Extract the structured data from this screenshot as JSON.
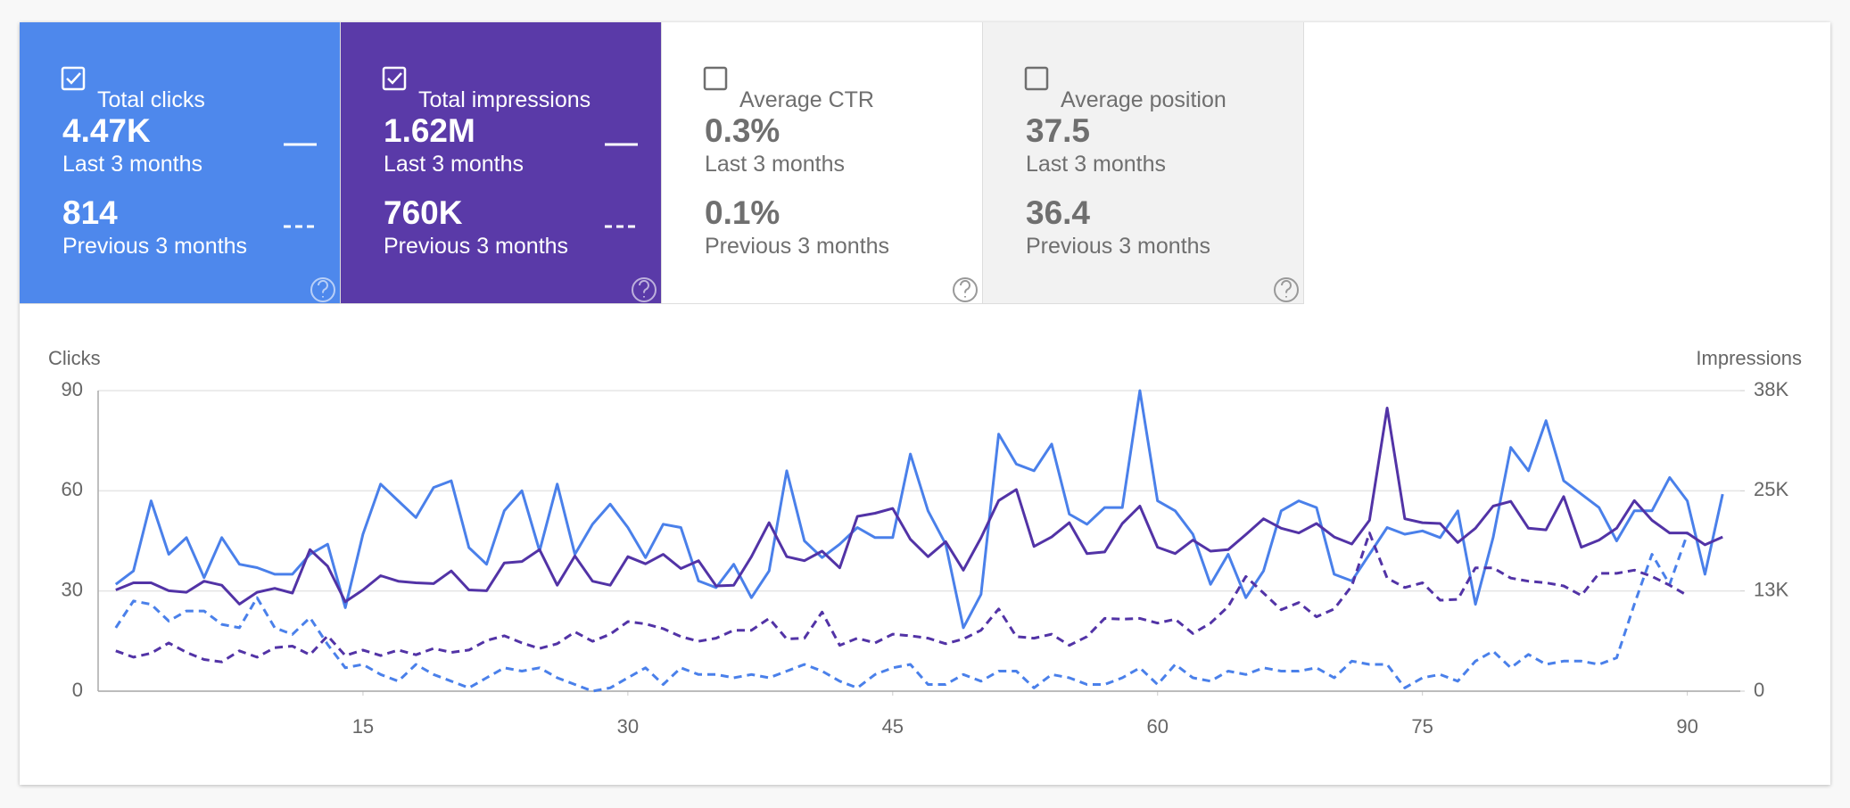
{
  "cards": [
    {
      "label": "Total clicks",
      "checked": true,
      "color": "#4e88ec",
      "text_color": "#ffffff",
      "value": "4.47K",
      "period": "Last 3 months",
      "previous_value": "814",
      "previous_period": "Previous 3 months"
    },
    {
      "label": "Total impressions",
      "checked": true,
      "color": "#5a3aa8",
      "text_color": "#ffffff",
      "value": "1.62M",
      "period": "Last 3 months",
      "previous_value": "760K",
      "previous_period": "Previous 3 months"
    },
    {
      "label": "Average CTR",
      "checked": false,
      "color": "#ffffff",
      "text_color": "#6f6f6f",
      "value": "0.3%",
      "period": "Last 3 months",
      "previous_value": "0.1%",
      "previous_period": "Previous 3 months"
    },
    {
      "label": "Average position",
      "checked": false,
      "color": "#f2f2f2",
      "text_color": "#6f6f6f",
      "value": "37.5",
      "period": "Last 3 months",
      "previous_value": "36.4",
      "previous_period": "Previous 3 months"
    }
  ],
  "chart_data": {
    "type": "line",
    "y_label": "Clicks",
    "y2_label": "Impressions",
    "grid": true,
    "x": [
      1,
      2,
      3,
      4,
      5,
      6,
      7,
      8,
      9,
      10,
      11,
      12,
      13,
      14,
      15,
      16,
      17,
      18,
      19,
      20,
      21,
      22,
      23,
      24,
      25,
      26,
      27,
      28,
      29,
      30,
      31,
      32,
      33,
      34,
      35,
      36,
      37,
      38,
      39,
      40,
      41,
      42,
      43,
      44,
      45,
      46,
      47,
      48,
      49,
      50,
      51,
      52,
      53,
      54,
      55,
      56,
      57,
      58,
      59,
      60,
      61,
      62,
      63,
      64,
      65,
      66,
      67,
      68,
      69,
      70,
      71,
      72,
      73,
      74,
      75,
      76,
      77,
      78,
      79,
      80,
      81,
      82,
      83,
      84,
      85,
      86,
      87,
      88,
      89,
      90,
      91,
      92
    ],
    "xlim": [
      0,
      93
    ],
    "xticks": [
      15,
      30,
      45,
      60,
      75,
      90
    ],
    "ylim": [
      0,
      90
    ],
    "yticks": [
      0,
      30,
      60,
      90
    ],
    "y2lim": [
      0,
      38000
    ],
    "y2ticks": [
      0,
      {
        "value": 12667,
        "label": "13K"
      },
      {
        "value": 25333,
        "label": "25K"
      },
      {
        "value": 38000,
        "label": "38K"
      }
    ],
    "series": [
      {
        "color": "#4a80ea",
        "line_style": "solid",
        "axis": "y",
        "values": [
          32,
          36,
          57,
          41,
          46,
          34,
          46,
          38,
          37,
          35,
          35,
          41,
          44,
          25,
          47,
          62,
          57,
          52,
          61,
          63,
          43,
          38,
          54,
          60,
          42,
          62,
          41,
          50,
          56,
          49,
          40,
          50,
          49,
          33,
          31,
          38,
          28,
          36,
          66,
          45,
          40,
          44,
          49,
          46,
          46,
          71,
          54,
          44,
          19,
          29,
          77,
          68,
          66,
          74,
          53,
          50,
          55,
          55,
          90,
          57,
          54,
          47,
          32,
          41,
          28,
          36,
          54,
          57,
          55,
          35,
          33,
          41,
          49,
          47,
          48,
          46,
          54,
          26,
          46,
          73,
          66,
          81,
          63,
          59,
          55,
          45,
          54,
          54,
          64,
          57,
          35,
          59
        ]
      },
      {
        "color": "#4a80ea",
        "line_style": "dashed",
        "axis": "y",
        "values": [
          19,
          27,
          26,
          21,
          24,
          24,
          20,
          19,
          28,
          19,
          17,
          22,
          14,
          7,
          8,
          5,
          3,
          8,
          5,
          3,
          1,
          4,
          7,
          6,
          7,
          4,
          2,
          0,
          1,
          4,
          7,
          2,
          7,
          5,
          5,
          4,
          5,
          4,
          6,
          8,
          6,
          3,
          1,
          5,
          7,
          8,
          2,
          2,
          5,
          3,
          6,
          6,
          1,
          5,
          4,
          2,
          2,
          4,
          7,
          2,
          8,
          4,
          3,
          6,
          5,
          7,
          6,
          6,
          7,
          4,
          9,
          8,
          8,
          1,
          4,
          5,
          3,
          9,
          12,
          7,
          11,
          8,
          9,
          9,
          8,
          10,
          26,
          41,
          32,
          47,
          null,
          null
        ]
      },
      {
        "color": "#5233a6",
        "line_style": "solid",
        "axis": "y2",
        "values": [
          12800,
          13700,
          13700,
          12700,
          12500,
          13900,
          13400,
          11000,
          12500,
          13000,
          12400,
          17900,
          15800,
          11300,
          12800,
          14600,
          13900,
          13700,
          13600,
          15200,
          12800,
          12700,
          16200,
          16400,
          17900,
          13400,
          17100,
          13900,
          13400,
          17000,
          16100,
          17300,
          15500,
          16500,
          13300,
          13400,
          17000,
          21300,
          17000,
          16500,
          17700,
          15600,
          22100,
          22500,
          23100,
          19200,
          17000,
          18900,
          15300,
          19400,
          24100,
          25500,
          18300,
          19500,
          21300,
          17400,
          17600,
          21200,
          23400,
          18200,
          17400,
          19100,
          17700,
          17900,
          19800,
          21800,
          20600,
          20000,
          21200,
          19500,
          18600,
          21600,
          35800,
          21800,
          21300,
          21200,
          18800,
          20600,
          23400,
          24000,
          20600,
          20400,
          24600,
          18200,
          19100,
          20600,
          24100,
          21600,
          20000,
          20000,
          18500,
          19500
        ]
      },
      {
        "color": "#5233a6",
        "line_style": "dashed",
        "axis": "y2",
        "values": [
          5100,
          4300,
          4800,
          6100,
          4900,
          4000,
          3700,
          5100,
          4300,
          5500,
          5700,
          4600,
          7000,
          4500,
          5200,
          4500,
          5200,
          4600,
          5400,
          4900,
          5200,
          6400,
          7000,
          6100,
          5400,
          6000,
          7500,
          6300,
          7200,
          8800,
          8500,
          7900,
          6900,
          6300,
          6700,
          7700,
          7700,
          9200,
          6600,
          6700,
          10000,
          5800,
          6700,
          6100,
          7200,
          7000,
          6700,
          6000,
          6600,
          7700,
          10400,
          6900,
          6700,
          7200,
          5800,
          6900,
          9200,
          9100,
          9200,
          8600,
          9100,
          7300,
          8600,
          10700,
          14500,
          12400,
          10300,
          11200,
          9400,
          10400,
          13300,
          20000,
          14300,
          13100,
          13700,
          11500,
          11600,
          15600,
          15600,
          14300,
          13900,
          13700,
          13300,
          12100,
          14900,
          14900,
          15300,
          14500,
          13400,
          12100,
          null,
          null
        ]
      }
    ]
  }
}
